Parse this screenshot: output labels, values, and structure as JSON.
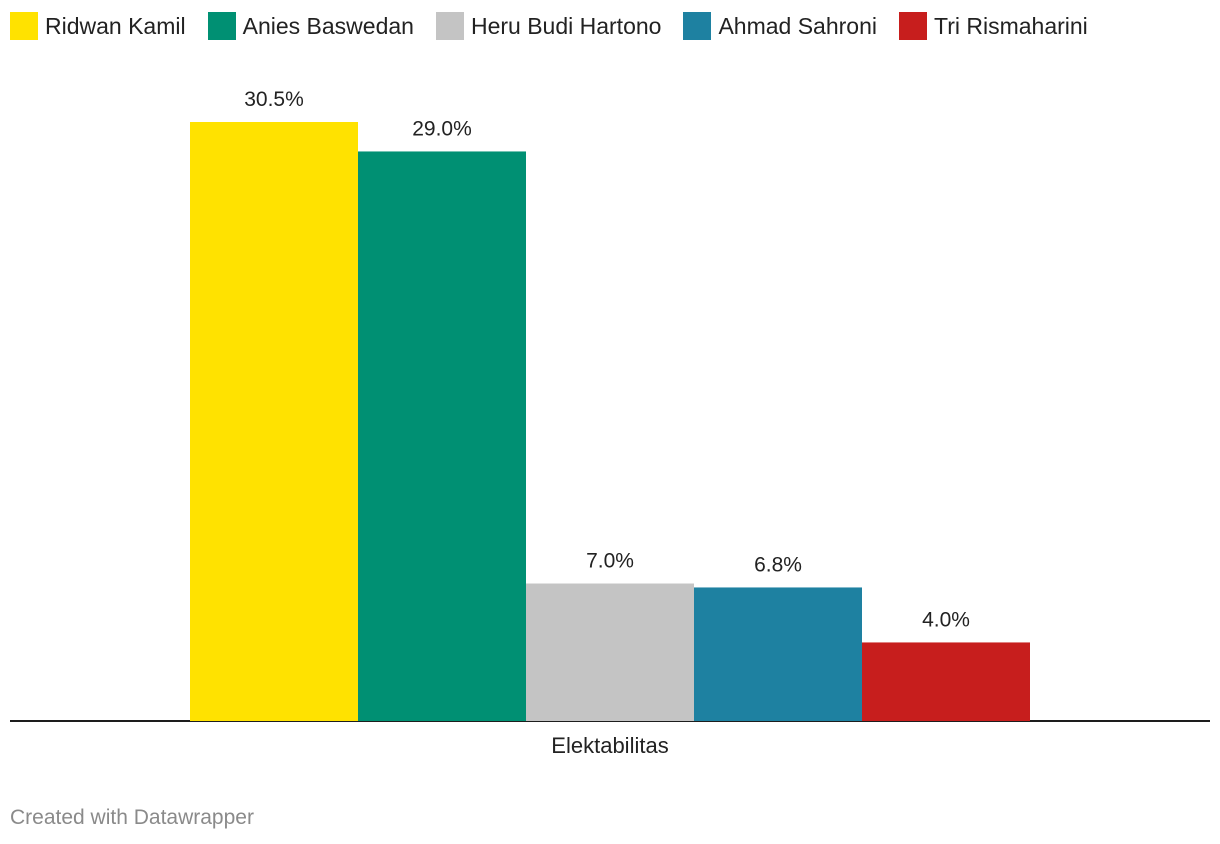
{
  "chart_data": {
    "type": "bar",
    "categories": [
      "Elektabilitas"
    ],
    "series": [
      {
        "name": "Ridwan Kamil",
        "values": [
          30.5
        ],
        "color": "#ffe200",
        "label": "30.5%"
      },
      {
        "name": "Anies Baswedan",
        "values": [
          29.0
        ],
        "color": "#009073",
        "label": "29.0%"
      },
      {
        "name": "Heru Budi Hartono",
        "values": [
          7.0
        ],
        "color": "#c4c4c4",
        "label": "7.0%"
      },
      {
        "name": "Ahmad Sahroni",
        "values": [
          6.8
        ],
        "color": "#1e81a1",
        "label": "6.8%"
      },
      {
        "name": "Tri Rismaharini",
        "values": [
          4.0
        ],
        "color": "#c71e1d",
        "label": "4.0%"
      }
    ],
    "ylim": [
      0,
      30.5
    ],
    "legend_position": "top-left",
    "grid": false
  },
  "footer": {
    "credit": "Created with Datawrapper"
  }
}
